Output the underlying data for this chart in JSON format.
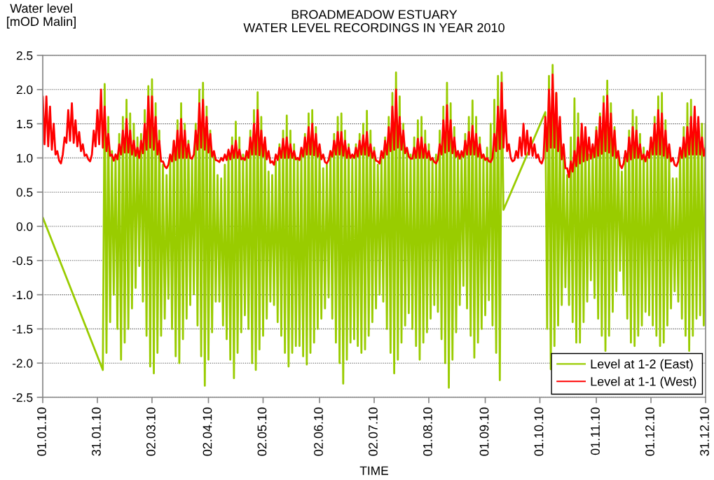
{
  "chart_data": {
    "type": "line",
    "title": "BROADMEADOW ESTUARY\nWATER LEVEL RECORDINGS IN YEAR 2010",
    "xlabel": "TIME",
    "ylabel": "Water level\n[mOD Malin]",
    "xlim": [
      "2010-01-01",
      "2010-12-31"
    ],
    "ylim": [
      -2.5,
      2.5
    ],
    "xticks": [
      {
        "value": "2010-01-01",
        "label": "01.01.10"
      },
      {
        "value": "2010-01-31",
        "label": "31.01.10"
      },
      {
        "value": "2010-03-02",
        "label": "02.03.10"
      },
      {
        "value": "2010-04-02",
        "label": "02.04.10"
      },
      {
        "value": "2010-05-02",
        "label": "02.05.10"
      },
      {
        "value": "2010-06-02",
        "label": "02.06.10"
      },
      {
        "value": "2010-07-02",
        "label": "02.07.10"
      },
      {
        "value": "2010-08-01",
        "label": "01.08.10"
      },
      {
        "value": "2010-09-01",
        "label": "01.09.10"
      },
      {
        "value": "2010-10-01",
        "label": "01.10.10"
      },
      {
        "value": "2010-11-01",
        "label": "01.11.10"
      },
      {
        "value": "2010-12-01",
        "label": "01.12.10"
      },
      {
        "value": "2010-12-31",
        "label": "31.12.10"
      }
    ],
    "yticks": [
      {
        "value": -2.5,
        "label": "-2.5"
      },
      {
        "value": -2.0,
        "label": "-2.0"
      },
      {
        "value": -1.5,
        "label": "-1.5"
      },
      {
        "value": -1.0,
        "label": "-1.0"
      },
      {
        "value": -0.5,
        "label": "-0.5"
      },
      {
        "value": 0,
        "label": "0.0"
      },
      {
        "value": 0.5,
        "label": "0.5"
      },
      {
        "value": 1.0,
        "label": "1.0"
      },
      {
        "value": 1.5,
        "label": "1.5"
      },
      {
        "value": 2.0,
        "label": "2.0"
      },
      {
        "value": 2.5,
        "label": "2.5"
      }
    ],
    "grid": "y",
    "legend": "bottom right",
    "x": [
      "2010-01-01",
      "2010-01-02",
      "2010-01-03",
      "2010-01-04",
      "2010-01-05",
      "2010-01-06",
      "2010-01-07",
      "2010-01-08",
      "2010-01-09",
      "2010-01-10",
      "2010-01-11",
      "2010-01-12",
      "2010-01-13",
      "2010-01-14",
      "2010-01-15",
      "2010-01-16",
      "2010-01-17",
      "2010-01-18",
      "2010-01-19",
      "2010-01-20",
      "2010-01-21",
      "2010-01-22",
      "2010-01-23",
      "2010-01-24",
      "2010-01-25",
      "2010-01-26",
      "2010-01-27",
      "2010-01-28",
      "2010-01-29",
      "2010-01-30",
      "2010-01-31",
      "2010-02-01",
      "2010-02-02",
      "2010-02-03",
      "2010-02-04",
      "2010-02-05",
      "2010-02-06",
      "2010-02-07",
      "2010-02-08",
      "2010-02-09",
      "2010-02-10",
      "2010-02-11",
      "2010-02-12",
      "2010-02-13",
      "2010-02-14",
      "2010-02-15",
      "2010-02-16",
      "2010-02-17",
      "2010-02-18",
      "2010-02-19",
      "2010-02-20",
      "2010-02-21",
      "2010-02-22",
      "2010-02-23",
      "2010-02-24",
      "2010-02-25",
      "2010-02-26",
      "2010-02-27",
      "2010-02-28",
      "2010-03-01",
      "2010-03-02",
      "2010-03-03",
      "2010-03-04",
      "2010-03-05",
      "2010-03-06",
      "2010-03-07",
      "2010-03-08",
      "2010-03-09",
      "2010-03-10",
      "2010-03-11",
      "2010-03-12",
      "2010-03-13",
      "2010-03-14",
      "2010-03-15",
      "2010-03-16",
      "2010-03-17",
      "2010-03-18",
      "2010-03-19",
      "2010-03-20",
      "2010-03-21",
      "2010-03-22",
      "2010-03-23",
      "2010-03-24",
      "2010-03-25",
      "2010-03-26",
      "2010-03-27",
      "2010-03-28",
      "2010-03-29",
      "2010-03-30",
      "2010-03-31",
      "2010-04-01",
      "2010-04-02",
      "2010-04-03",
      "2010-04-04",
      "2010-04-05",
      "2010-04-06",
      "2010-04-07",
      "2010-04-08",
      "2010-04-09",
      "2010-04-10",
      "2010-04-11",
      "2010-04-12",
      "2010-04-13",
      "2010-04-14",
      "2010-04-15",
      "2010-04-16",
      "2010-04-17",
      "2010-04-18",
      "2010-04-19",
      "2010-04-20",
      "2010-04-21",
      "2010-04-22",
      "2010-04-23",
      "2010-04-24",
      "2010-04-25",
      "2010-04-26",
      "2010-04-27",
      "2010-04-28",
      "2010-04-29",
      "2010-04-30",
      "2010-05-01",
      "2010-05-02",
      "2010-05-03",
      "2010-05-04",
      "2010-05-05",
      "2010-05-06",
      "2010-05-07",
      "2010-05-08",
      "2010-05-09",
      "2010-05-10",
      "2010-05-11",
      "2010-05-12",
      "2010-05-13",
      "2010-05-14",
      "2010-05-15",
      "2010-05-16",
      "2010-05-17",
      "2010-05-18",
      "2010-05-19",
      "2010-05-20",
      "2010-05-21",
      "2010-05-22",
      "2010-05-23",
      "2010-05-24",
      "2010-05-25",
      "2010-05-26",
      "2010-05-27",
      "2010-05-28",
      "2010-05-29",
      "2010-05-30",
      "2010-05-31",
      "2010-06-01",
      "2010-06-02",
      "2010-06-03",
      "2010-06-04",
      "2010-06-05",
      "2010-06-06",
      "2010-06-07",
      "2010-06-08",
      "2010-06-09",
      "2010-06-10",
      "2010-06-11",
      "2010-06-12",
      "2010-06-13",
      "2010-06-14",
      "2010-06-15",
      "2010-06-16",
      "2010-06-17",
      "2010-06-18",
      "2010-06-19",
      "2010-06-20",
      "2010-06-21",
      "2010-06-22",
      "2010-06-23",
      "2010-06-24",
      "2010-06-25",
      "2010-06-26",
      "2010-06-27",
      "2010-06-28",
      "2010-06-29",
      "2010-06-30",
      "2010-07-01",
      "2010-07-02",
      "2010-07-03",
      "2010-07-04",
      "2010-07-05",
      "2010-07-06",
      "2010-07-07",
      "2010-07-08",
      "2010-07-09",
      "2010-07-10",
      "2010-07-11",
      "2010-07-12",
      "2010-07-13",
      "2010-07-14",
      "2010-07-15",
      "2010-07-16",
      "2010-07-17",
      "2010-07-18",
      "2010-07-19",
      "2010-07-20",
      "2010-07-21",
      "2010-07-22",
      "2010-07-23",
      "2010-07-24",
      "2010-07-25",
      "2010-07-26",
      "2010-07-27",
      "2010-07-28",
      "2010-07-29",
      "2010-07-30",
      "2010-07-31",
      "2010-08-01",
      "2010-08-02",
      "2010-08-03",
      "2010-08-04",
      "2010-08-05",
      "2010-08-06",
      "2010-08-07",
      "2010-08-08",
      "2010-08-09",
      "2010-08-10",
      "2010-08-11",
      "2010-08-12",
      "2010-08-13",
      "2010-08-14",
      "2010-08-15",
      "2010-08-16",
      "2010-08-17",
      "2010-08-18",
      "2010-08-19",
      "2010-08-20",
      "2010-08-21",
      "2010-08-22",
      "2010-08-23",
      "2010-08-24",
      "2010-08-25",
      "2010-08-26",
      "2010-08-27",
      "2010-08-28",
      "2010-08-29",
      "2010-08-30",
      "2010-08-31",
      "2010-09-01",
      "2010-09-02",
      "2010-09-03",
      "2010-09-04",
      "2010-09-05",
      "2010-09-06",
      "2010-09-07",
      "2010-09-08",
      "2010-09-09",
      "2010-09-10",
      "2010-09-11",
      "2010-09-12",
      "2010-09-13",
      "2010-09-14",
      "2010-09-15",
      "2010-09-16",
      "2010-09-17",
      "2010-09-18",
      "2010-09-19",
      "2010-09-20",
      "2010-09-21",
      "2010-09-22",
      "2010-09-23",
      "2010-09-24",
      "2010-09-25",
      "2010-09-26",
      "2010-09-27",
      "2010-09-28",
      "2010-09-29",
      "2010-09-30",
      "2010-10-01",
      "2010-10-02",
      "2010-10-03",
      "2010-10-04",
      "2010-10-05",
      "2010-10-06",
      "2010-10-07",
      "2010-10-08",
      "2010-10-09",
      "2010-10-10",
      "2010-10-11",
      "2010-10-12",
      "2010-10-13",
      "2010-10-14",
      "2010-10-15",
      "2010-10-16",
      "2010-10-17",
      "2010-10-18",
      "2010-10-19",
      "2010-10-20",
      "2010-10-21",
      "2010-10-22",
      "2010-10-23",
      "2010-10-24",
      "2010-10-25",
      "2010-10-26",
      "2010-10-27",
      "2010-10-28",
      "2010-10-29",
      "2010-10-30",
      "2010-10-31",
      "2010-11-01",
      "2010-11-02",
      "2010-11-03",
      "2010-11-04",
      "2010-11-05",
      "2010-11-06",
      "2010-11-07",
      "2010-11-08",
      "2010-11-09",
      "2010-11-10",
      "2010-11-11",
      "2010-11-12",
      "2010-11-13",
      "2010-11-14",
      "2010-11-15",
      "2010-11-16",
      "2010-11-17",
      "2010-11-18",
      "2010-11-19",
      "2010-11-20",
      "2010-11-21",
      "2010-11-22",
      "2010-11-23",
      "2010-11-24",
      "2010-11-25",
      "2010-11-26",
      "2010-11-27",
      "2010-11-28",
      "2010-11-29",
      "2010-11-30",
      "2010-12-01",
      "2010-12-02",
      "2010-12-03",
      "2010-12-04",
      "2010-12-05",
      "2010-12-06",
      "2010-12-07",
      "2010-12-08",
      "2010-12-09",
      "2010-12-10",
      "2010-12-11",
      "2010-12-12",
      "2010-12-13",
      "2010-12-14",
      "2010-12-15",
      "2010-12-16",
      "2010-12-17",
      "2010-12-18",
      "2010-12-19",
      "2010-12-20",
      "2010-12-21",
      "2010-12-22",
      "2010-12-23",
      "2010-12-24",
      "2010-12-25",
      "2010-12-26",
      "2010-12-27",
      "2010-12-28",
      "2010-12-29",
      "2010-12-30",
      "2010-12-31"
    ],
    "series": [
      {
        "name": "Level at 1-2 (East)",
        "color": "#99cc00",
        "x": [
          "2010-01-01",
          "2010-02-03",
          "2010-02-04",
          "2010-02-05",
          "2010-02-06",
          "2010-02-07",
          "2010-02-08",
          "2010-02-09",
          "2010-02-10",
          "2010-02-11",
          "2010-02-12",
          "2010-02-13",
          "2010-02-14",
          "2010-02-15",
          "2010-02-16",
          "2010-02-17",
          "2010-02-18",
          "2010-02-19",
          "2010-02-20",
          "2010-02-21",
          "2010-02-22",
          "2010-02-23",
          "2010-02-24",
          "2010-02-25",
          "2010-02-26",
          "2010-02-27",
          "2010-02-28",
          "2010-03-01",
          "2010-03-02",
          "2010-03-03",
          "2010-03-04",
          "2010-03-05",
          "2010-03-06",
          "2010-03-07",
          "2010-03-08",
          "2010-03-09",
          "2010-03-10",
          "2010-03-11",
          "2010-03-12",
          "2010-03-13",
          "2010-03-14",
          "2010-03-15",
          "2010-03-16",
          "2010-03-17",
          "2010-03-18",
          "2010-03-19",
          "2010-03-20",
          "2010-03-21",
          "2010-03-22",
          "2010-03-23",
          "2010-03-24",
          "2010-03-25",
          "2010-03-26",
          "2010-03-27",
          "2010-03-28",
          "2010-03-29",
          "2010-03-30",
          "2010-03-31",
          "2010-04-01",
          "2010-04-02",
          "2010-04-03",
          "2010-04-04",
          "2010-04-05",
          "2010-04-06",
          "2010-04-07",
          "2010-04-08",
          "2010-04-09",
          "2010-04-10",
          "2010-04-11",
          "2010-04-12",
          "2010-04-13",
          "2010-04-14",
          "2010-04-15",
          "2010-04-16",
          "2010-04-17",
          "2010-04-18",
          "2010-04-19",
          "2010-04-20",
          "2010-04-21",
          "2010-04-22",
          "2010-04-23",
          "2010-04-24",
          "2010-04-25",
          "2010-04-26",
          "2010-04-27",
          "2010-04-28",
          "2010-04-29",
          "2010-04-30",
          "2010-05-01",
          "2010-05-02",
          "2010-05-03",
          "2010-05-04",
          "2010-05-05",
          "2010-05-06",
          "2010-05-07",
          "2010-05-08",
          "2010-05-09",
          "2010-05-10",
          "2010-05-11",
          "2010-05-12",
          "2010-05-13",
          "2010-05-14",
          "2010-05-15",
          "2010-05-16",
          "2010-05-17",
          "2010-05-18",
          "2010-05-19",
          "2010-05-20",
          "2010-05-21",
          "2010-05-22",
          "2010-05-23",
          "2010-05-24",
          "2010-05-25",
          "2010-05-26",
          "2010-05-27",
          "2010-05-28",
          "2010-05-29",
          "2010-05-30",
          "2010-05-31",
          "2010-06-01",
          "2010-06-02",
          "2010-06-03",
          "2010-06-04",
          "2010-06-05",
          "2010-06-06",
          "2010-06-07",
          "2010-06-08",
          "2010-06-09",
          "2010-06-10",
          "2010-06-11",
          "2010-06-12",
          "2010-06-13",
          "2010-06-14",
          "2010-06-15",
          "2010-06-16",
          "2010-06-17",
          "2010-06-18",
          "2010-06-19",
          "2010-06-20",
          "2010-06-21",
          "2010-06-22",
          "2010-06-23",
          "2010-06-24",
          "2010-06-25",
          "2010-06-26",
          "2010-06-27",
          "2010-06-28",
          "2010-06-29",
          "2010-06-30",
          "2010-07-01",
          "2010-07-02",
          "2010-07-03",
          "2010-07-04",
          "2010-07-05",
          "2010-07-06",
          "2010-07-07",
          "2010-07-08",
          "2010-07-09",
          "2010-07-10",
          "2010-07-11",
          "2010-07-12",
          "2010-07-13",
          "2010-07-14",
          "2010-07-15",
          "2010-07-16",
          "2010-07-17",
          "2010-07-18",
          "2010-07-19",
          "2010-07-20",
          "2010-07-21",
          "2010-07-22",
          "2010-07-23",
          "2010-07-24",
          "2010-07-25",
          "2010-07-26",
          "2010-07-27",
          "2010-07-28",
          "2010-07-29",
          "2010-07-30",
          "2010-07-31",
          "2010-08-01",
          "2010-08-02",
          "2010-08-03",
          "2010-08-04",
          "2010-08-05",
          "2010-08-06",
          "2010-08-07",
          "2010-08-08",
          "2010-08-09",
          "2010-08-10",
          "2010-08-11",
          "2010-08-12",
          "2010-08-13",
          "2010-08-14",
          "2010-08-15",
          "2010-08-16",
          "2010-08-17",
          "2010-08-18",
          "2010-08-19",
          "2010-08-20",
          "2010-08-21",
          "2010-08-22",
          "2010-08-23",
          "2010-08-24",
          "2010-08-25",
          "2010-08-26",
          "2010-08-27",
          "2010-08-28",
          "2010-08-29",
          "2010-08-30",
          "2010-08-31",
          "2010-09-01",
          "2010-09-02",
          "2010-09-03",
          "2010-09-04",
          "2010-09-05",
          "2010-09-06",
          "2010-09-07",
          "2010-09-08",
          "2010-09-09",
          "2010-09-10",
          "2010-09-11",
          "2010-10-04",
          "2010-10-05",
          "2010-10-06",
          "2010-10-07",
          "2010-10-08",
          "2010-10-09",
          "2010-10-10",
          "2010-10-11",
          "2010-10-12",
          "2010-10-13",
          "2010-10-14",
          "2010-10-15",
          "2010-10-16",
          "2010-10-17",
          "2010-10-18",
          "2010-10-19",
          "2010-10-20",
          "2010-10-21",
          "2010-10-22",
          "2010-10-23",
          "2010-10-24",
          "2010-10-25",
          "2010-10-26",
          "2010-10-27",
          "2010-10-28",
          "2010-10-29",
          "2010-10-30",
          "2010-10-31",
          "2010-11-01",
          "2010-11-02",
          "2010-11-03",
          "2010-11-04",
          "2010-11-05",
          "2010-11-06",
          "2010-11-07",
          "2010-11-08",
          "2010-11-09",
          "2010-11-10",
          "2010-11-11",
          "2010-11-12",
          "2010-11-13",
          "2010-11-14",
          "2010-11-15",
          "2010-11-16",
          "2010-11-17",
          "2010-11-18",
          "2010-11-19",
          "2010-11-20",
          "2010-11-21",
          "2010-11-22",
          "2010-11-23",
          "2010-11-24",
          "2010-11-25",
          "2010-11-26",
          "2010-11-27",
          "2010-11-28",
          "2010-11-29",
          "2010-11-30",
          "2010-12-01",
          "2010-12-02",
          "2010-12-03",
          "2010-12-04",
          "2010-12-05",
          "2010-12-06",
          "2010-12-07",
          "2010-12-08",
          "2010-12-09",
          "2010-12-10",
          "2010-12-11",
          "2010-12-12",
          "2010-12-13",
          "2010-12-14",
          "2010-12-15",
          "2010-12-16",
          "2010-12-17",
          "2010-12-18",
          "2010-12-19",
          "2010-12-20",
          "2010-12-21",
          "2010-12-22",
          "2010-12-23",
          "2010-12-24",
          "2010-12-25",
          "2010-12-26",
          "2010-12-27",
          "2010-12-28",
          "2010-12-29",
          "2010-12-30",
          "2010-12-31"
        ],
        "values": [
          0.13,
          -2.1,
          2.08,
          -1.85,
          1.6,
          -1.4,
          1.1,
          -1.0,
          1.05,
          -1.5,
          1.35,
          -1.95,
          1.6,
          -1.7,
          1.85,
          -1.5,
          1.65,
          -1.2,
          1.5,
          -0.9,
          1.3,
          -0.58,
          1.35,
          -1.1,
          1.7,
          -1.6,
          2.05,
          -2.05,
          2.15,
          -2.15,
          1.8,
          -1.85,
          1.4,
          -1.6,
          0.9,
          -1.35,
          0.75,
          -1.06,
          1.0,
          -1.5,
          1.25,
          -1.9,
          1.55,
          -2.0,
          1.8,
          -1.65,
          1.5,
          -1.35,
          1.25,
          -1.15,
          1.0,
          -0.99,
          1.5,
          -1.45,
          2.0,
          -1.9,
          2.1,
          -2.33,
          1.75,
          -1.95,
          1.4,
          -1.55,
          1.05,
          -1.1,
          0.75,
          -1.1,
          0.7,
          -1.45,
          0.9,
          -1.65,
          1.1,
          -1.95,
          1.3,
          -2.22,
          1.53,
          -1.85,
          1.3,
          -1.55,
          1.05,
          -1.3,
          1.1,
          -1.5,
          1.4,
          -2.0,
          1.7,
          -2.1,
          1.96,
          -1.8,
          1.6,
          -1.6,
          1.2,
          -1.35,
          0.8,
          -1.1,
          0.75,
          -1.15,
          0.95,
          -1.4,
          1.2,
          -1.6,
          1.4,
          -1.85,
          1.62,
          -2.05,
          1.4,
          -1.85,
          1.2,
          -1.75,
          1.0,
          -1.75,
          1.1,
          -1.9,
          1.35,
          -2.02,
          1.65,
          -1.85,
          1.7,
          -1.7,
          1.45,
          -1.5,
          1.15,
          -1.35,
          0.85,
          -1.2,
          0.9,
          -1.04,
          1.1,
          -1.35,
          1.35,
          -1.7,
          1.6,
          -2.0,
          1.65,
          -2.3,
          1.4,
          -1.95,
          1.2,
          -1.7,
          1.0,
          -1.65,
          1.2,
          -1.75,
          1.35,
          -1.85,
          1.5,
          -1.8,
          1.69,
          -1.6,
          1.4,
          -1.4,
          1.15,
          -1.2,
          0.9,
          -1.0,
          1.0,
          -1.1,
          1.3,
          -1.5,
          1.6,
          -1.85,
          1.95,
          -2.15,
          2.25,
          -1.95,
          1.9,
          -1.7,
          1.5,
          -1.45,
          1.1,
          -1.27,
          1.05,
          -1.5,
          1.3,
          -1.75,
          1.55,
          -1.95,
          1.6,
          -1.7,
          1.4,
          -1.55,
          1.2,
          -1.35,
          1.0,
          -1.15,
          1.05,
          -1.25,
          1.4,
          -1.65,
          1.75,
          -2.0,
          2.1,
          -2.36,
          1.8,
          -1.95,
          1.45,
          -1.55,
          1.1,
          -1.15,
          1.05,
          -0.87,
          1.35,
          -1.2,
          1.6,
          -1.6,
          1.84,
          -1.92,
          1.6,
          -1.7,
          1.3,
          -1.5,
          1.05,
          -1.3,
          1.15,
          -1.08,
          1.5,
          -1.45,
          1.85,
          -1.85,
          2.2,
          -2.25,
          2.25,
          0.24,
          1.67,
          -1.5,
          2.2,
          -2.09,
          2.36,
          -1.75,
          1.95,
          -1.45,
          1.55,
          -1.15,
          1.15,
          -0.89,
          0.75,
          -1.15,
          1.3,
          -1.4,
          1.87,
          -1.7,
          1.65,
          -1.7,
          1.45,
          -1.4,
          1.25,
          -1.1,
          1.05,
          -0.79,
          1.15,
          -1.05,
          1.45,
          -1.35,
          1.65,
          -1.6,
          1.9,
          -1.82,
          2.13,
          -1.6,
          1.8,
          -1.25,
          1.45,
          -0.95,
          1.1,
          -0.65,
          0.8,
          -1.0,
          1.1,
          -1.35,
          1.4,
          -1.7,
          1.7,
          -1.75,
          1.6,
          -1.6,
          1.35,
          -1.45,
          1.15,
          -1.25,
          1.0,
          -1.3,
          1.3,
          -1.45,
          1.6,
          -1.6,
          1.9,
          -1.75,
          1.95,
          -1.7,
          1.55,
          -1.45,
          1.1,
          -1.2,
          0.7,
          -0.95,
          0.7,
          -1.1,
          1.1,
          -1.35,
          1.45,
          -1.6,
          1.8,
          -1.82,
          1.85,
          -1.6,
          1.7,
          -1.35,
          1.55,
          -1.3,
          1.5,
          -1.45,
          1.5
        ]
      },
      {
        "name": "Level at 1-1 (West)",
        "color": "#ff0000",
        "values": [
          1.9,
          1.2,
          1.9,
          1.17,
          1.75,
          1.12,
          1.5,
          1.05,
          1.1,
          0.96,
          0.92,
          1.05,
          1.3,
          1.22,
          1.7,
          1.25,
          1.8,
          1.22,
          1.55,
          1.17,
          1.38,
          1.1,
          1.2,
          1.03,
          1.05,
          0.98,
          0.95,
          1.05,
          1.4,
          1.17,
          1.7,
          1.2,
          2.0,
          1.15,
          1.75,
          1.1,
          1.35,
          1.03,
          1.05,
          0.96,
          1.05,
          0.98,
          1.2,
          1.05,
          1.4,
          1.08,
          1.57,
          1.08,
          1.4,
          1.05,
          1.25,
          1.03,
          1.15,
          1.0,
          1.25,
          1.07,
          1.5,
          1.12,
          1.9,
          1.15,
          1.9,
          1.12,
          1.6,
          1.05,
          1.25,
          0.95,
          0.95,
          0.88,
          0.85,
          0.9,
          1.05,
          0.95,
          1.25,
          0.97,
          1.4,
          1.0,
          1.57,
          1.0,
          1.4,
          1.0,
          1.2,
          1.0,
          0.99,
          1.05,
          1.4,
          1.12,
          1.8,
          1.15,
          1.85,
          1.12,
          1.6,
          1.08,
          1.35,
          1.02,
          1.1,
          0.97,
          0.96,
          0.94,
          1.0,
          0.96,
          1.05,
          0.97,
          1.12,
          0.98,
          1.18,
          1.0,
          1.25,
          1.0,
          1.12,
          0.98,
          1.0,
          0.97,
          1.1,
          1.0,
          1.3,
          1.05,
          1.5,
          1.05,
          1.7,
          1.04,
          1.4,
          1.02,
          1.3,
          0.98,
          1.1,
          0.93,
          0.95,
          0.9,
          1.05,
          0.97,
          1.15,
          1.0,
          1.28,
          1.0,
          1.3,
          1.0,
          1.2,
          1.0,
          1.1,
          0.98,
          1.0,
          0.97,
          1.15,
          1.02,
          1.3,
          1.05,
          1.45,
          1.05,
          1.5,
          1.04,
          1.35,
          1.02,
          1.2,
          0.98,
          1.05,
          0.94,
          0.92,
          0.97,
          1.1,
          1.02,
          1.25,
          1.05,
          1.38,
          1.05,
          1.38,
          1.03,
          1.25,
          1.0,
          1.15,
          1.0,
          1.05,
          1.0,
          1.15,
          1.02,
          1.25,
          1.05,
          1.33,
          1.05,
          1.38,
          1.03,
          1.2,
          1.0,
          1.1,
          0.96,
          0.95,
          0.92,
          1.1,
          1.0,
          1.25,
          1.05,
          1.45,
          1.1,
          1.75,
          1.12,
          2.0,
          1.15,
          1.6,
          1.12,
          1.4,
          1.07,
          1.15,
          1.02,
          0.99,
          0.99,
          1.15,
          1.0,
          1.28,
          1.0,
          1.3,
          1.0,
          1.2,
          1.0,
          1.1,
          0.97,
          1.0,
          0.94,
          0.92,
          0.98,
          1.2,
          1.05,
          1.55,
          1.08,
          1.77,
          1.1,
          1.55,
          1.07,
          1.3,
          1.02,
          1.1,
          0.99,
          1.1,
          1.02,
          1.25,
          1.05,
          1.38,
          1.05,
          1.47,
          1.05,
          1.35,
          1.02,
          1.2,
          1.0,
          1.05,
          0.97,
          1.0,
          0.95,
          0.94,
          1.0,
          1.35,
          1.1,
          1.75,
          1.13,
          2.1,
          1.15,
          1.7,
          1.1,
          1.2,
          1.0,
          0.95,
          0.97,
          1.1,
          1.0,
          1.3,
          1.03,
          1.5,
          1.05,
          1.4,
          1.05,
          1.3,
          1.03,
          1.2,
          1.0,
          1.05,
          0.95,
          0.92,
          1.0,
          1.6,
          1.1,
          2.0,
          1.15,
          2.22,
          1.15,
          1.95,
          1.1,
          1.6,
          0.98,
          1.2,
          0.85,
          0.85,
          0.72,
          0.95,
          0.8,
          1.1,
          0.88,
          1.3,
          0.92,
          1.5,
          0.95,
          1.45,
          0.97,
          1.3,
          0.99,
          1.2,
          1.01,
          1.4,
          1.03,
          1.6,
          1.06,
          1.8,
          1.1,
          1.91,
          1.08,
          1.65,
          1.03,
          1.4,
          1.0,
          1.1,
          0.9,
          0.85,
          0.92,
          1.1,
          0.95,
          1.3,
          0.98,
          1.45,
          1.0,
          1.4,
          1.0,
          1.2,
          0.98,
          1.05,
          0.95,
          1.1,
          1.0,
          1.3,
          1.05,
          1.5,
          1.05,
          1.7,
          1.05,
          1.65,
          1.03,
          1.4,
          1.0,
          1.2,
          0.95,
          1.0,
          0.9,
          0.88,
          0.95,
          1.15,
          1.0,
          1.3,
          1.02,
          1.45,
          1.05,
          1.6,
          1.05,
          1.75,
          1.05,
          1.6,
          1.05,
          1.3,
          1.03,
          1.15
        ]
      }
    ]
  }
}
